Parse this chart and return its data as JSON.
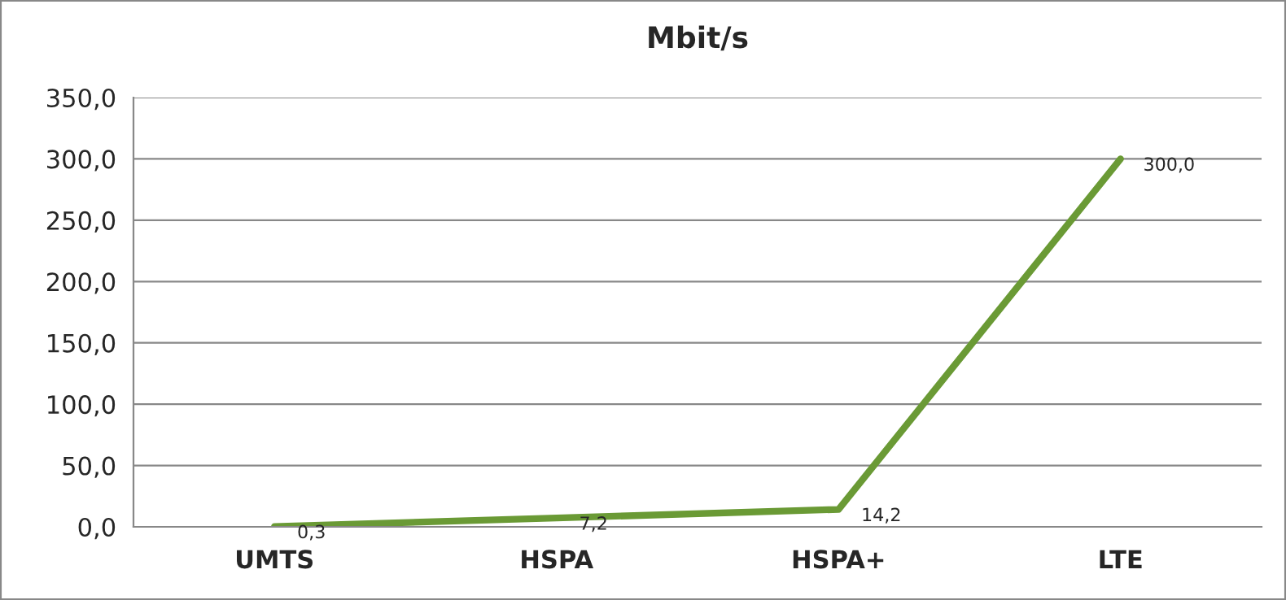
{
  "chart_data": {
    "type": "line",
    "title": "Mbit/s",
    "categories": [
      "UMTS",
      "HSPA",
      "HSPA+",
      "LTE"
    ],
    "series": [
      {
        "color": "#6a9a35",
        "values": [
          0.3,
          7.2,
          14.2,
          300.0
        ],
        "value_labels": [
          "0,3",
          "7,2",
          "14,2",
          "300,0"
        ]
      }
    ],
    "ylim": [
      0,
      350
    ],
    "yticks": [
      {
        "value": 0,
        "label": "0,0"
      },
      {
        "value": 50,
        "label": "50,0"
      },
      {
        "value": 100,
        "label": "100,0"
      },
      {
        "value": 150,
        "label": "150,0"
      },
      {
        "value": 200,
        "label": "200,0"
      },
      {
        "value": 250,
        "label": "250,0"
      },
      {
        "value": 300,
        "label": "300,0"
      },
      {
        "value": 350,
        "label": "350,0"
      }
    ],
    "grid": "y",
    "marker": "none",
    "line_style": "solid"
  }
}
